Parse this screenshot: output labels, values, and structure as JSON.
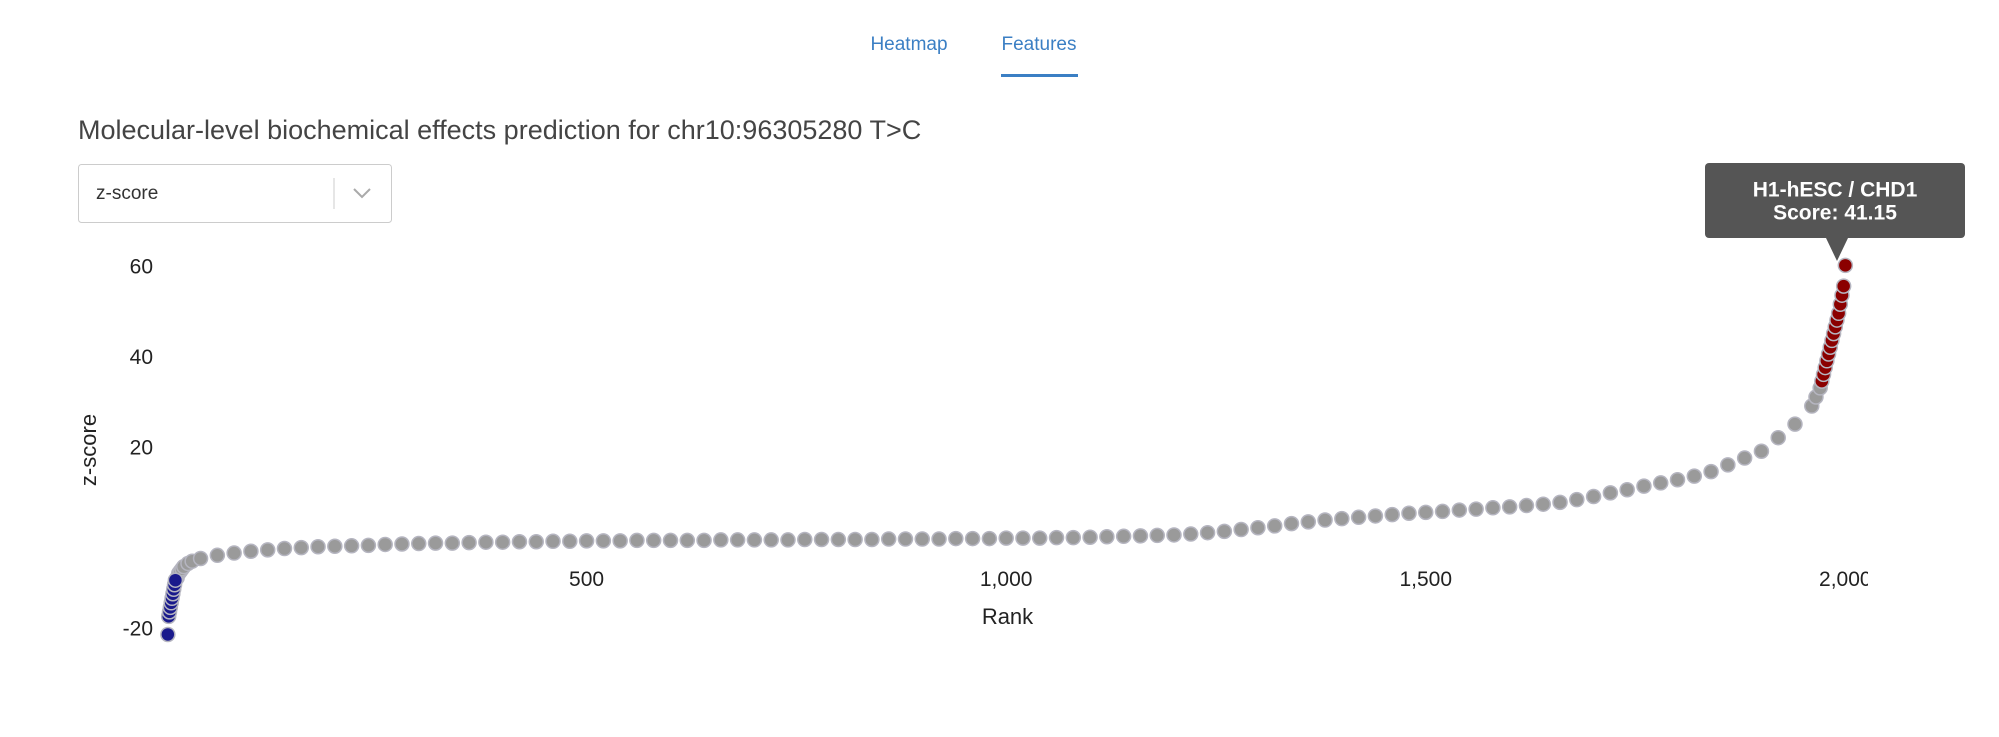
{
  "tabs": [
    "Heatmap",
    "Features"
  ],
  "title": "Molecular-level biochemical effects prediction for chr10:96305280 T>C",
  "dropdown": {
    "value": "z-score"
  },
  "tooltip": {
    "lines": [
      "H1-hESC / CHD1",
      "Score: 41.15"
    ]
  },
  "chart_data": {
    "type": "scatter",
    "x_label": "Rank",
    "y_label": "z-score",
    "xlim": [
      0,
      2027
    ],
    "ylim": [
      -22,
      62
    ],
    "xticks": [
      500,
      {
        "value": 1000,
        "label": "1,000"
      },
      {
        "value": 1500,
        "label": "1,500"
      },
      {
        "value": 2000,
        "label": "2,000"
      }
    ],
    "yticks": [
      -20,
      20,
      40,
      60
    ],
    "grid": false,
    "series": [
      {
        "color": "#9a9a9a",
        "x": [
          12,
          14,
          16,
          18,
          20,
          25,
          30,
          40,
          60,
          80,
          100,
          120,
          140,
          160,
          180,
          200,
          220,
          240,
          260,
          280,
          300,
          320,
          340,
          360,
          380,
          400,
          420,
          440,
          460,
          480,
          500,
          520,
          540,
          560,
          580,
          600,
          620,
          640,
          660,
          680,
          700,
          720,
          740,
          760,
          780,
          800,
          820,
          840,
          860,
          880,
          900,
          920,
          940,
          960,
          980,
          1000,
          1020,
          1040,
          1060,
          1080,
          1100,
          1120,
          1140,
          1160,
          1180,
          1200,
          1220,
          1240,
          1260,
          1280,
          1300,
          1320,
          1340,
          1360,
          1380,
          1400,
          1420,
          1440,
          1460,
          1480,
          1500,
          1520,
          1540,
          1560,
          1580,
          1600,
          1620,
          1640,
          1660,
          1680,
          1700,
          1720,
          1740,
          1760,
          1780,
          1800,
          1820,
          1840,
          1860,
          1880,
          1900,
          1920,
          1940,
          1960,
          1965,
          1970
        ],
        "values": [
          -8.5,
          -7.5,
          -7,
          -6.5,
          -6,
          -5.3,
          -4.8,
          -4.2,
          -3.5,
          -3.0,
          -2.6,
          -2.3,
          -2.0,
          -1.8,
          -1.6,
          -1.5,
          -1.4,
          -1.3,
          -1.1,
          -1.0,
          -0.9,
          -0.8,
          -0.8,
          -0.7,
          -0.6,
          -0.6,
          -0.5,
          -0.5,
          -0.4,
          -0.4,
          -0.3,
          -0.3,
          -0.3,
          -0.2,
          -0.2,
          -0.2,
          -0.2,
          -0.2,
          -0.1,
          -0.1,
          -0.1,
          -0.1,
          -0.1,
          0,
          0,
          0,
          0,
          0,
          0.1,
          0.1,
          0.1,
          0.1,
          0.2,
          0.2,
          0.2,
          0.3,
          0.3,
          0.3,
          0.4,
          0.4,
          0.5,
          0.6,
          0.7,
          0.8,
          0.9,
          1.0,
          1.2,
          1.5,
          1.8,
          2.2,
          2.6,
          3.0,
          3.5,
          3.9,
          4.3,
          4.6,
          4.9,
          5.2,
          5.5,
          5.8,
          6.0,
          6.2,
          6.5,
          6.7,
          7.0,
          7.2,
          7.5,
          7.8,
          8.2,
          8.8,
          9.5,
          10.3,
          11.0,
          11.8,
          12.5,
          13.2,
          14.0,
          15.0,
          16.5,
          18.0,
          19.5,
          22.5,
          25.5,
          29.5,
          31.5,
          33.5
        ]
      },
      {
        "color": "#1a1a8c",
        "x": [
          1,
          2,
          3,
          4,
          5,
          6,
          7,
          8,
          9,
          10
        ],
        "values": [
          -21,
          -17,
          -16,
          -15,
          -14,
          -13,
          -12,
          -11,
          -10,
          -9
        ]
      },
      {
        "color": "#8b0000",
        "x": [
          1972,
          1974,
          1976,
          1978,
          1980,
          1982,
          1984,
          1986,
          1988,
          1990,
          1992,
          1994,
          1996,
          1998,
          2000
        ],
        "values": [
          35,
          36.5,
          38,
          39.5,
          41,
          42.5,
          44,
          45.5,
          47,
          48.5,
          50,
          52,
          54,
          56,
          60.6
        ]
      }
    ]
  }
}
